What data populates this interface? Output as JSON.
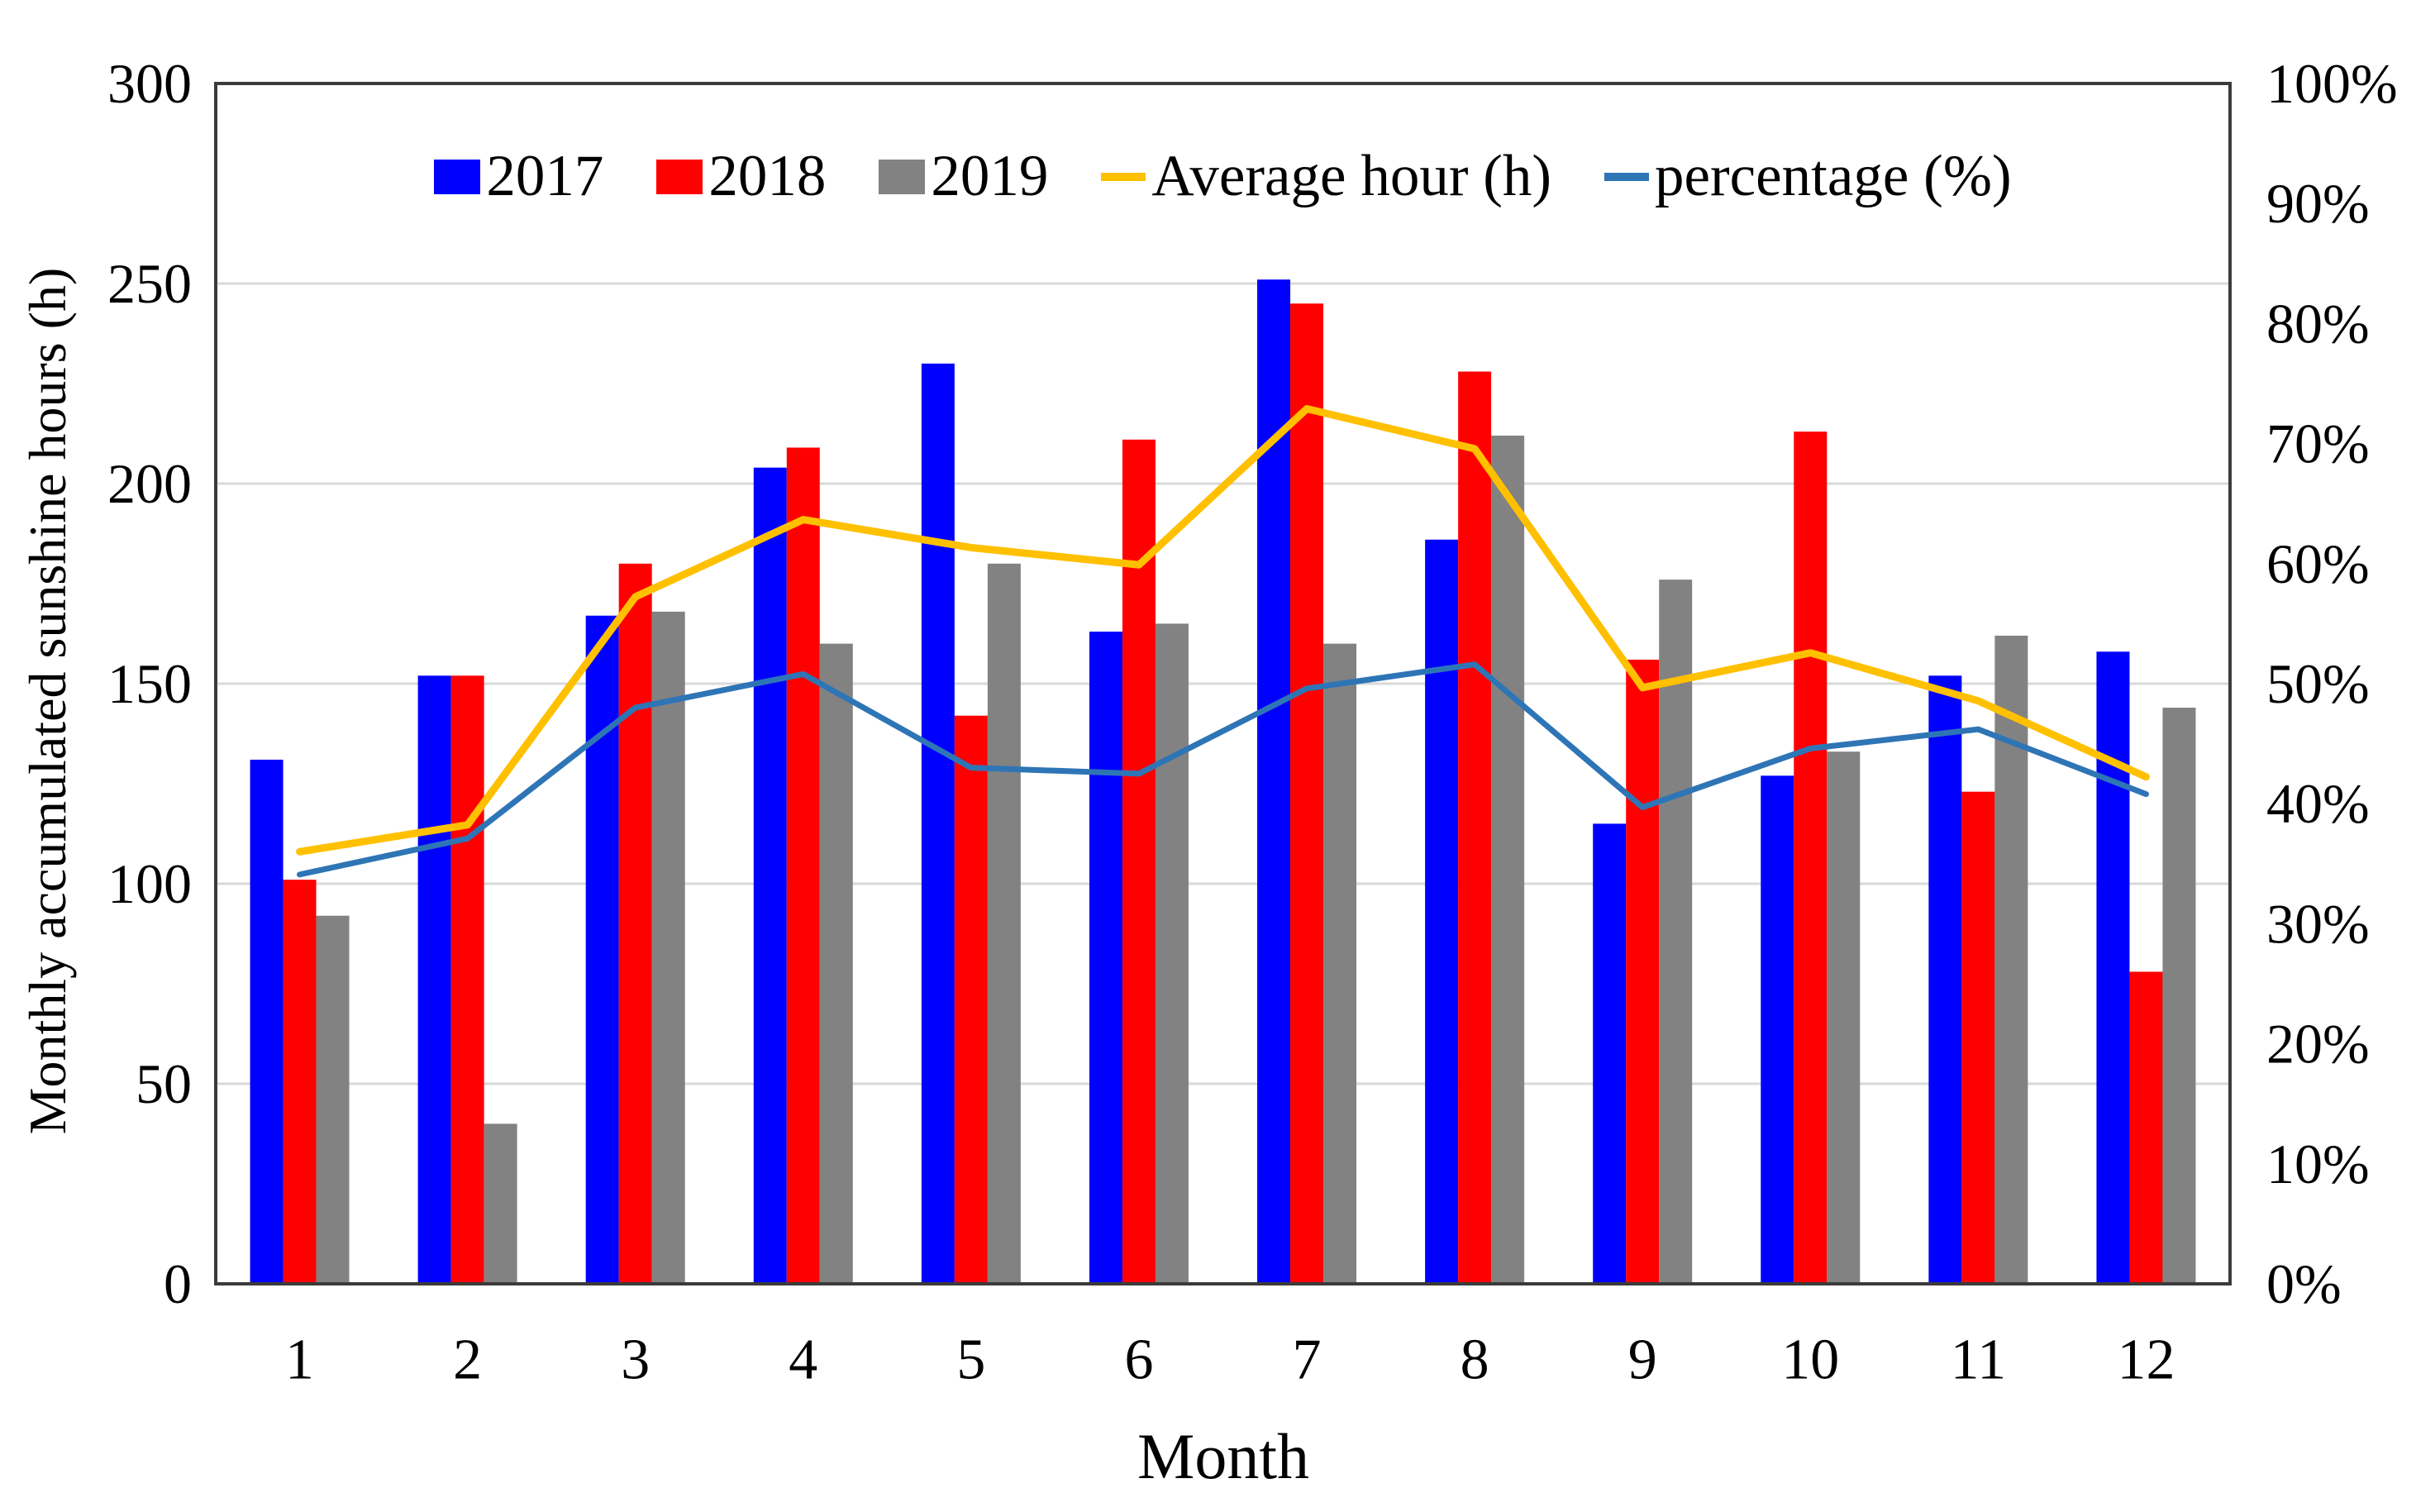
{
  "chart_data": {
    "type": "bar+line",
    "title": "",
    "xlabel": "Month",
    "ylabel_left": "Monthly accumulated sunshine hours (h)",
    "ylabel_right": "",
    "categories": [
      "1",
      "2",
      "3",
      "4",
      "5",
      "6",
      "7",
      "8",
      "9",
      "10",
      "11",
      "12"
    ],
    "series": [
      {
        "name": "2017",
        "type": "bar",
        "axis": "left",
        "color": "#0000FE",
        "values": [
          131,
          152,
          167,
          204,
          230,
          163,
          251,
          186,
          115,
          127,
          152,
          158
        ]
      },
      {
        "name": "2018",
        "type": "bar",
        "axis": "left",
        "color": "#FE0000",
        "values": [
          101,
          152,
          180,
          209,
          142,
          211,
          245,
          228,
          156,
          213,
          123,
          78
        ]
      },
      {
        "name": "2019",
        "type": "bar",
        "axis": "left",
        "color": "#828282",
        "values": [
          92,
          40,
          168,
          160,
          180,
          165,
          160,
          212,
          176,
          133,
          162,
          144
        ]
      },
      {
        "name": "Average hour (h)",
        "type": "line",
        "axis": "left",
        "color": "#FFC000",
        "values": [
          108.0,
          114.7,
          171.7,
          191.0,
          184.0,
          179.7,
          218.7,
          208.7,
          149.0,
          157.7,
          145.7,
          126.7
        ]
      },
      {
        "name": "percentage (%)",
        "type": "line",
        "axis": "right",
        "color": "#2E75B6",
        "values": [
          34.1,
          37.1,
          48.0,
          50.8,
          43.0,
          42.5,
          49.6,
          51.6,
          39.7,
          44.6,
          46.2,
          40.8
        ]
      }
    ],
    "y_left": {
      "min": 0,
      "max": 300,
      "step": 50,
      "ticks": [
        "0",
        "50",
        "100",
        "150",
        "200",
        "250",
        "300"
      ]
    },
    "y_right": {
      "min": 0,
      "max": 100,
      "step": 10,
      "ticks": [
        "0%",
        "10%",
        "20%",
        "30%",
        "40%",
        "50%",
        "60%",
        "70%",
        "80%",
        "90%",
        "100%"
      ]
    },
    "grid": true,
    "legend_position": "top-center"
  },
  "legend": [
    {
      "label": "2017",
      "marker": "square",
      "color": "#0000FE"
    },
    {
      "label": "2018",
      "marker": "square",
      "color": "#FE0000"
    },
    {
      "label": "2019",
      "marker": "square",
      "color": "#828282"
    },
    {
      "label": "Average hour (h)",
      "marker": "line",
      "color": "#FFC000"
    },
    {
      "label": "percentage (%)",
      "marker": "line",
      "color": "#2E75B6"
    }
  ],
  "colors": {
    "bar_2017": "#0000FE",
    "bar_2018": "#FE0000",
    "bar_2019": "#828282",
    "line_average": "#FFC000",
    "line_percentage": "#2E75B6",
    "gridline": "#D9D9D9",
    "plot_border": "#3B3B3B",
    "background": "#FFFFFF"
  }
}
